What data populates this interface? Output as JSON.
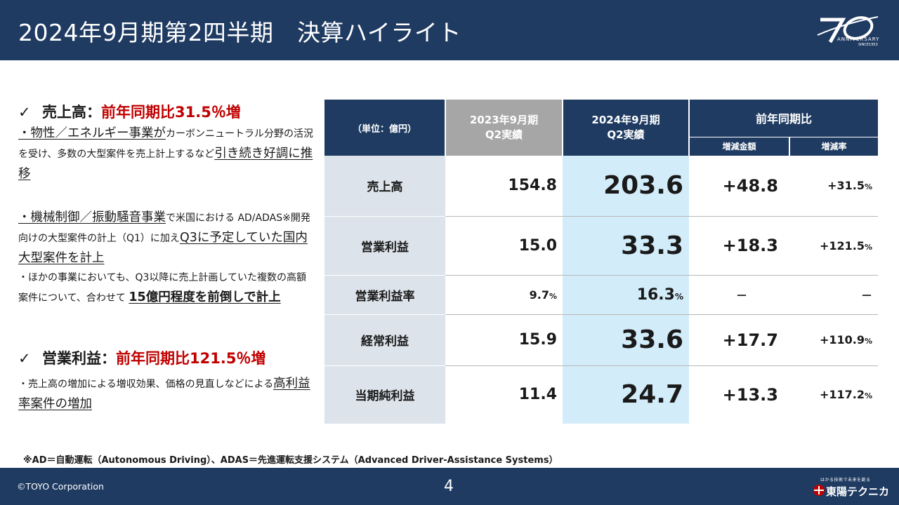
{
  "header": {
    "title": "2024年9月期第2四半期　決算ハイライト",
    "anniversary": {
      "number": "70",
      "suffix": "th",
      "label": "ANNIVERSARY",
      "since": "SINCE1953"
    }
  },
  "left": {
    "section1": {
      "check": "✓",
      "label": "売上高：",
      "highlight": "前年同期比31.5％増",
      "p1": {
        "a_underline": "・物性／エネルギー事業が",
        "b": "カーボンニュートラル分野の活況を受け、多数の大型案件を売上計上するなど",
        "c_underline": "引き続き好調に推移"
      },
      "p2": {
        "a_underline": "・機械制御／振動騒音事業",
        "b": "で米国における AD/ADAS※開発向けの大型案件の計上（Q1）に加え",
        "c_underline": "Q3に予定していた国内大型案件を計上"
      },
      "p3": {
        "a": "・ほかの事業においても、Q3以降に売上計画していた複数の高額案件について、合わせて ",
        "b_bold": "15億円程度を前倒しで計上"
      }
    },
    "section2": {
      "check": "✓",
      "label": "営業利益：",
      "highlight": "前年同期比121.5％増",
      "p1": {
        "a": "・売上高の増加による増収効果、価格の見直しなどによる",
        "b_underline": "高利益率案件の増加"
      }
    }
  },
  "table": {
    "unit": "（単位：億円）",
    "col_prev": [
      "2023年9月期",
      "Q2実績"
    ],
    "col_cur": [
      "2024年9月期",
      "Q2実績"
    ],
    "col_yoy": "前年同期比",
    "col_amt": "増減金額",
    "col_rate": "増減率",
    "rows": [
      {
        "label": "売上高",
        "prev": "154.8",
        "cur": "203.6",
        "amt": "+48.8",
        "rate": "+31.5",
        "rate_unit": "%"
      },
      {
        "label": "営業利益",
        "prev": "15.0",
        "cur": "33.3",
        "amt": "+18.3",
        "rate": "+121.5",
        "rate_unit": "%"
      },
      {
        "label": "営業利益率",
        "prev": "9.7",
        "prev_unit": "%",
        "cur": "16.3",
        "cur_unit": "%",
        "amt": "－",
        "rate": "－"
      },
      {
        "label": "経常利益",
        "prev": "15.9",
        "cur": "33.6",
        "amt": "+17.7",
        "rate": "+110.9",
        "rate_unit": "%"
      },
      {
        "label": "当期純利益",
        "prev": "11.4",
        "cur": "24.7",
        "amt": "+13.3",
        "rate": "+117.2",
        "rate_unit": "%"
      }
    ]
  },
  "footnote": "※AD＝自動運転（Autonomous Driving）、ADAS＝先進運転支援システム（Advanced Driver-Assistance Systems）",
  "footer": {
    "copyright": "©TOYO Corporation",
    "page": "4",
    "tagline": "はかる技術で未来を創る",
    "company": "東陽テクニカ"
  },
  "colors": {
    "navy": "#1f3b62",
    "red": "#c00000",
    "gray_header": "#a6a6a6",
    "highlight_col": "#d3ecfa",
    "label_col": "#dde3ea"
  }
}
